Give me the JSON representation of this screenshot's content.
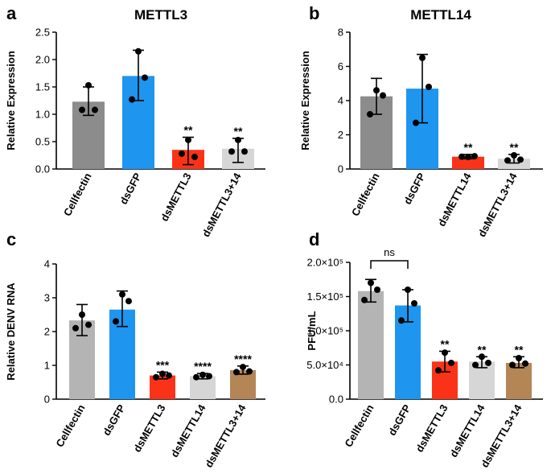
{
  "chart_data": [
    {
      "panel_label": "a",
      "type": "bar",
      "title": "METTL3",
      "ylabel": "Relative Expression",
      "categories": [
        "Cellfectin",
        "dsGFP",
        "dsMETTL3",
        "dsMETTL3+14"
      ],
      "values": [
        1.23,
        1.7,
        0.35,
        0.37
      ],
      "error_low": [
        0.98,
        1.25,
        0.08,
        0.12
      ],
      "error_high": [
        1.5,
        2.17,
        0.58,
        0.56
      ],
      "points": [
        [
          1.53,
          1.08,
          1.08
        ],
        [
          2.15,
          1.27,
          1.67
        ],
        [
          0.53,
          0.28,
          0.22
        ],
        [
          0.53,
          0.32,
          0.32
        ]
      ],
      "significance": [
        "",
        "",
        "**",
        "**"
      ],
      "ylim": [
        0,
        2.5
      ],
      "yticks": [
        "0.0",
        "0.5",
        "1.0",
        "1.5",
        "2.0",
        "2.5"
      ],
      "colors": [
        "#8c8c8c",
        "#1e95ee",
        "#fa3318",
        "#d6d6d6"
      ]
    },
    {
      "panel_label": "b",
      "type": "bar",
      "title": "METTL14",
      "ylabel": "Relative Expression",
      "categories": [
        "Cellfectin",
        "dsGFP",
        "dsMETTL14",
        "dsMETTL3+14"
      ],
      "values": [
        4.25,
        4.7,
        0.72,
        0.6
      ],
      "error_low": [
        3.2,
        2.7,
        0.6,
        0.35
      ],
      "error_high": [
        5.3,
        6.7,
        0.85,
        0.85
      ],
      "points": [
        [
          4.6,
          3.2,
          4.3
        ],
        [
          6.5,
          2.7,
          4.8
        ],
        [
          0.7,
          0.72,
          0.75
        ],
        [
          0.8,
          0.5,
          0.55
        ]
      ],
      "significance": [
        "",
        "",
        "**",
        "**"
      ],
      "ylim": [
        0,
        8
      ],
      "yticks": [
        "0",
        "2",
        "4",
        "6",
        "8"
      ],
      "colors": [
        "#8c8c8c",
        "#1e95ee",
        "#fa3318",
        "#d6d6d6"
      ]
    },
    {
      "panel_label": "c",
      "type": "bar",
      "title": "",
      "ylabel": "Relative DENV RNA",
      "categories": [
        "Cellfectin",
        "dsGFP",
        "dsMETTL3",
        "dsMETTL14",
        "dsMETTL3+14"
      ],
      "values": [
        2.33,
        2.65,
        0.7,
        0.68,
        0.86
      ],
      "error_low": [
        1.88,
        2.15,
        0.6,
        0.6,
        0.74
      ],
      "error_high": [
        2.8,
        3.2,
        0.8,
        0.76,
        0.98
      ],
      "points": [
        [
          2.5,
          2.1,
          2.2
        ],
        [
          3.1,
          2.3,
          2.9
        ],
        [
          0.75,
          0.65,
          0.7
        ],
        [
          0.72,
          0.65,
          0.68
        ],
        [
          0.95,
          0.8,
          0.82
        ]
      ],
      "significance": [
        "",
        "",
        "***",
        "****",
        "****"
      ],
      "ylim": [
        0,
        4
      ],
      "yticks": [
        "0",
        "1",
        "2",
        "3",
        "4"
      ],
      "colors": [
        "#b4b4b4",
        "#1e95ee",
        "#fa3318",
        "#d6d6d6",
        "#b48655"
      ]
    },
    {
      "panel_label": "d",
      "type": "bar",
      "title": "",
      "ylabel": "PFU/mL",
      "categories": [
        "Cellfectin",
        "dsGFP",
        "dsMETTL3",
        "dsMETTL14",
        "dsMETTL3+14"
      ],
      "values": [
        158000,
        137000,
        55000,
        55000,
        53000
      ],
      "error_low": [
        142000,
        113000,
        40000,
        46000,
        46000
      ],
      "error_high": [
        175000,
        160000,
        70000,
        62000,
        62000
      ],
      "points": [
        [
          170000,
          145000,
          160000
        ],
        [
          160000,
          115000,
          140000
        ],
        [
          68000,
          42000,
          53000
        ],
        [
          62000,
          50000,
          53000
        ],
        [
          60000,
          50000,
          52000
        ]
      ],
      "significance": [
        "",
        "",
        "**",
        "**",
        "**"
      ],
      "bracket": {
        "from": 0,
        "to": 1,
        "label": "ns"
      },
      "ylim": [
        0,
        200000
      ],
      "yticks": [
        "0.0",
        "5.0×10⁴",
        "1.0×10⁵",
        "1.5×10⁵",
        "2.0×10⁵"
      ],
      "colors": [
        "#b4b4b4",
        "#1e95ee",
        "#fa3318",
        "#d6d6d6",
        "#b48655"
      ]
    }
  ]
}
